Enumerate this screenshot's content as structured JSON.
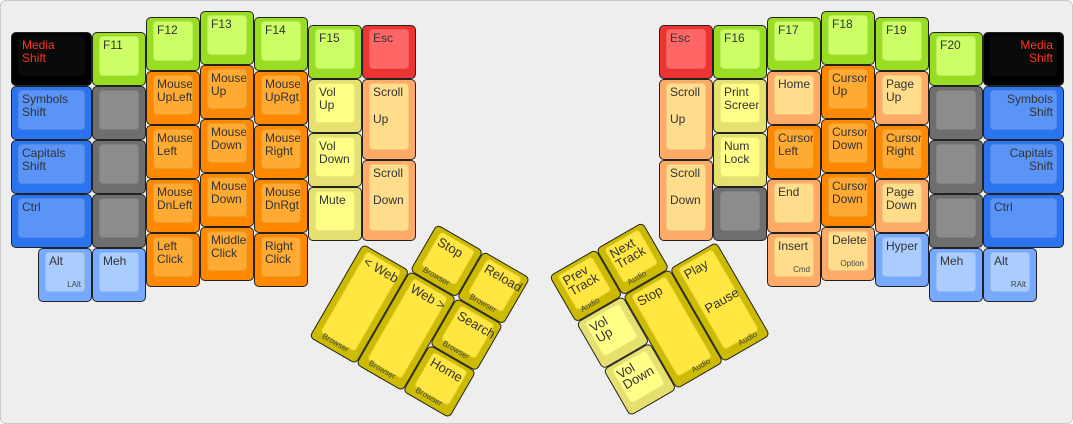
{
  "colors": {
    "black": "#000000",
    "blue": "#2a74f2",
    "gray": "#6e6e6e",
    "lime": "#99dd22",
    "orange": "#ff8800",
    "lightyellow": "#ffff88",
    "red": "#ee3333",
    "peach": "#ffaa66",
    "lightblue": "#77aaff",
    "yellow": "#ccbb00"
  },
  "left_hand": [
    {
      "lines": [
        "Media",
        "Shift"
      ],
      "color": "black"
    },
    {
      "lines": [
        "Symbols",
        "Shift"
      ],
      "color": "blue"
    },
    {
      "lines": [
        "Capitals",
        "Shift"
      ],
      "color": "blue"
    },
    {
      "lines": [
        "Ctrl"
      ],
      "color": "blue"
    },
    {
      "lines": [
        "Alt"
      ],
      "sub": "LAlt",
      "color": "lightblue"
    },
    {
      "lines": [
        "F11"
      ],
      "color": "lime"
    },
    {
      "lines": [],
      "color": "gray"
    },
    {
      "lines": [],
      "color": "gray"
    },
    {
      "lines": [],
      "color": "gray"
    },
    {
      "lines": [
        "Meh"
      ],
      "color": "lightblue"
    },
    {
      "lines": [
        "F12"
      ],
      "color": "lime"
    },
    {
      "lines": [
        "Mouse",
        "UpLeft"
      ],
      "color": "orange"
    },
    {
      "lines": [
        "Mouse",
        "Left"
      ],
      "color": "orange"
    },
    {
      "lines": [
        "Mouse",
        "DnLeft"
      ],
      "color": "orange"
    },
    {
      "lines": [
        "Left",
        "Click"
      ],
      "color": "orange"
    },
    {
      "lines": [
        "F13"
      ],
      "color": "lime"
    },
    {
      "lines": [
        "Mouse",
        "Up"
      ],
      "color": "orange"
    },
    {
      "lines": [
        "Mouse",
        "Down"
      ],
      "color": "orange"
    },
    {
      "lines": [
        "Mouse",
        "Down"
      ],
      "color": "orange"
    },
    {
      "lines": [
        "Middle",
        "Click"
      ],
      "color": "orange"
    },
    {
      "lines": [
        "F14"
      ],
      "color": "lime"
    },
    {
      "lines": [
        "Mouse",
        "UpRgt"
      ],
      "color": "orange"
    },
    {
      "lines": [
        "Mouse",
        "Right"
      ],
      "color": "orange"
    },
    {
      "lines": [
        "Mouse",
        "DnRgt"
      ],
      "color": "orange"
    },
    {
      "lines": [
        "Right",
        "Click"
      ],
      "color": "orange"
    },
    {
      "lines": [
        "F15"
      ],
      "color": "lime"
    },
    {
      "lines": [
        "Vol",
        "Up"
      ],
      "color": "lightyellow"
    },
    {
      "lines": [
        "Vol",
        "Down"
      ],
      "color": "lightyellow"
    },
    {
      "lines": [
        "Mute"
      ],
      "color": "lightyellow"
    },
    {
      "lines": [
        "Esc"
      ],
      "color": "red"
    },
    {
      "lines": [
        "Scroll"
      ],
      "mid": "Up",
      "color": "peach"
    },
    {
      "lines": [
        "Scroll"
      ],
      "mid": "Down",
      "color": "peach"
    }
  ],
  "left_thumb": [
    {
      "lines": [
        "Stop"
      ],
      "sub": "Browser",
      "color": "yellow"
    },
    {
      "lines": [
        "Reload"
      ],
      "sub": "Browser",
      "color": "yellow"
    },
    {
      "lines": [
        "< Web"
      ],
      "sub": "Browser",
      "color": "yellow"
    },
    {
      "lines": [
        "Web >"
      ],
      "sub": "Browser",
      "color": "yellow"
    },
    {
      "lines": [
        "Search"
      ],
      "sub": "Browser",
      "color": "yellow"
    },
    {
      "lines": [
        "Home"
      ],
      "sub": "Browser",
      "color": "yellow"
    }
  ],
  "right_thumb": [
    {
      "lines": [
        "Prev",
        "Track"
      ],
      "sub": "Audio",
      "color": "yellow"
    },
    {
      "lines": [
        "Next",
        "Track"
      ],
      "sub": "Audio",
      "color": "yellow"
    },
    {
      "lines": [
        "Vol",
        "Up"
      ],
      "color": "lightyellow"
    },
    {
      "lines": [
        "Vol",
        "Down"
      ],
      "color": "lightyellow"
    },
    {
      "lines": [
        "Stop"
      ],
      "sub": "Audio",
      "color": "yellow"
    },
    {
      "lines": [
        "Play"
      ],
      "mid": "Pause",
      "sub": "Audio",
      "color": "yellow"
    }
  ],
  "right_hand": [
    {
      "lines": [
        "Esc"
      ],
      "color": "red"
    },
    {
      "lines": [
        "Scroll"
      ],
      "mid": "Up",
      "color": "peach"
    },
    {
      "lines": [
        "Scroll"
      ],
      "mid": "Down",
      "color": "peach"
    },
    {
      "lines": [
        "F16"
      ],
      "color": "lime"
    },
    {
      "lines": [
        "Print",
        "Screen"
      ],
      "color": "lightyellow"
    },
    {
      "lines": [
        "Num",
        "Lock"
      ],
      "color": "lightyellow"
    },
    {
      "lines": [],
      "color": "gray"
    },
    {
      "lines": [
        "F17"
      ],
      "color": "lime"
    },
    {
      "lines": [
        "Home"
      ],
      "color": "peach"
    },
    {
      "lines": [
        "Cursor",
        "Left"
      ],
      "color": "orange"
    },
    {
      "lines": [
        "End"
      ],
      "color": "peach"
    },
    {
      "lines": [
        "Insert"
      ],
      "sub": "Cmd",
      "color": "peach"
    },
    {
      "lines": [
        "F18"
      ],
      "color": "lime"
    },
    {
      "lines": [
        "Cursor",
        "Up"
      ],
      "color": "orange"
    },
    {
      "lines": [
        "Cursor",
        "Down"
      ],
      "color": "orange"
    },
    {
      "lines": [
        "Cursor",
        "Down"
      ],
      "color": "orange"
    },
    {
      "lines": [
        "Delete"
      ],
      "sub": "Option",
      "color": "peach"
    },
    {
      "lines": [
        "F19"
      ],
      "color": "lime"
    },
    {
      "lines": [
        "Page",
        "Up"
      ],
      "color": "peach"
    },
    {
      "lines": [
        "Cursor",
        "Right"
      ],
      "color": "orange"
    },
    {
      "lines": [
        "Page",
        "Down"
      ],
      "color": "peach"
    },
    {
      "lines": [
        "Hyper"
      ],
      "color": "lightblue"
    },
    {
      "lines": [
        "F20"
      ],
      "color": "lime"
    },
    {
      "lines": [],
      "color": "gray"
    },
    {
      "lines": [],
      "color": "gray"
    },
    {
      "lines": [],
      "color": "gray"
    },
    {
      "lines": [
        "Meh"
      ],
      "color": "lightblue"
    },
    {
      "lines": [
        "Media",
        "Shift"
      ],
      "color": "black",
      "align": "right"
    },
    {
      "lines": [
        "Symbols",
        "Shift"
      ],
      "color": "blue",
      "align": "right"
    },
    {
      "lines": [
        "Capitals",
        "Shift"
      ],
      "color": "blue",
      "align": "right"
    },
    {
      "lines": [
        "Ctrl"
      ],
      "color": "blue"
    },
    {
      "lines": [
        "Alt"
      ],
      "sub": "RAlt",
      "color": "lightblue"
    }
  ]
}
